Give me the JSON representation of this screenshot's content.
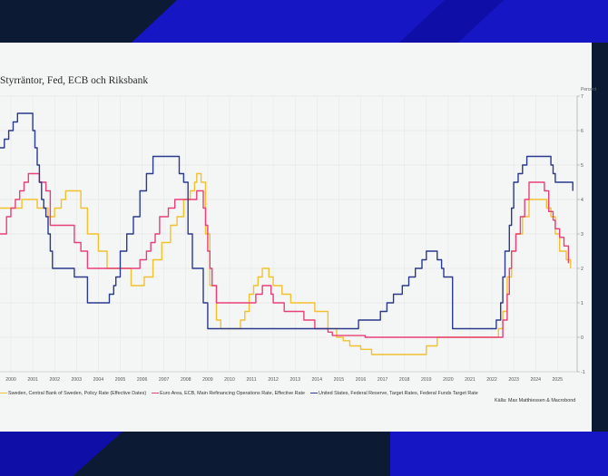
{
  "title": "Styrräntor, Fed, ECB och Riksbank",
  "source": "Källa: Max Matthiessen & Macrobond",
  "colors": {
    "background": "#0c1a34",
    "accent": "#1414c8",
    "card": "#f4f5f5"
  },
  "chart_data": {
    "type": "line",
    "ylabel": "Percent",
    "ylim": [
      -1,
      7
    ],
    "yticks": [
      -1,
      0,
      1,
      2,
      3,
      4,
      5,
      6,
      7
    ],
    "xlim": [
      1999.5,
      2025.9
    ],
    "xticks": [
      2000,
      2001,
      2002,
      2003,
      2004,
      2005,
      2006,
      2007,
      2008,
      2009,
      2010,
      2011,
      2012,
      2013,
      2014,
      2015,
      2016,
      2017,
      2018,
      2019,
      2020,
      2021,
      2022,
      2023,
      2024,
      2025
    ],
    "legend_position": "bottom",
    "grid": true,
    "series": [
      {
        "name": "Sweden, Central Bank of Sweden, Policy Rate (Effective Dates)",
        "color": "#f2c12e",
        "x": [
          1999.5,
          1999.9,
          2000.5,
          2001.2,
          2001.7,
          2002.0,
          2002.3,
          2002.5,
          2002.9,
          2003.2,
          2003.5,
          2004.0,
          2004.4,
          2005.0,
          2005.5,
          2005.9,
          2006.1,
          2006.5,
          2006.9,
          2007.3,
          2007.6,
          2007.9,
          2008.2,
          2008.4,
          2008.5,
          2008.7,
          2008.9,
          2009.1,
          2009.4,
          2009.6,
          2010.0,
          2010.5,
          2010.7,
          2010.9,
          2011.1,
          2011.3,
          2011.5,
          2011.8,
          2012.0,
          2012.4,
          2012.8,
          2013.0,
          2013.9,
          2014.5,
          2014.9,
          2015.2,
          2015.5,
          2016.0,
          2016.5,
          2017.0,
          2018.0,
          2019.0,
          2019.5,
          2020.0,
          2021.0,
          2022.0,
          2022.3,
          2022.5,
          2022.7,
          2022.9,
          2023.1,
          2023.4,
          2023.7,
          2024.0,
          2024.3,
          2024.5,
          2024.7,
          2024.9,
          2025.1,
          2025.4,
          2025.6
        ],
        "values": [
          3.75,
          3.75,
          4.0,
          3.75,
          3.5,
          3.75,
          4.0,
          4.25,
          4.25,
          3.75,
          3.0,
          2.5,
          2.0,
          2.0,
          1.5,
          1.5,
          1.75,
          2.25,
          2.75,
          3.25,
          3.5,
          4.0,
          4.25,
          4.5,
          4.75,
          4.5,
          3.0,
          1.5,
          0.5,
          0.25,
          0.25,
          0.5,
          0.75,
          1.25,
          1.5,
          1.75,
          2.0,
          1.75,
          1.5,
          1.25,
          1.0,
          1.0,
          0.75,
          0.25,
          0.0,
          -0.1,
          -0.25,
          -0.35,
          -0.5,
          -0.5,
          -0.5,
          -0.25,
          0.0,
          0.0,
          0.0,
          0.0,
          0.25,
          0.75,
          1.75,
          2.5,
          3.0,
          3.5,
          4.0,
          4.0,
          4.0,
          3.75,
          3.5,
          3.0,
          2.5,
          2.25,
          2.0
        ]
      },
      {
        "name": "Euro Area, ECB, Main Refinancing Operations Rate, Effective Rate",
        "color": "#e8407a",
        "x": [
          1999.5,
          1999.8,
          2000.0,
          2000.2,
          2000.4,
          2000.6,
          2000.8,
          2001.3,
          2001.6,
          2001.8,
          2002.9,
          2003.2,
          2003.5,
          2005.9,
          2006.2,
          2006.4,
          2006.6,
          2006.8,
          2007.2,
          2007.5,
          2008.5,
          2008.8,
          2008.9,
          2009.0,
          2009.1,
          2009.2,
          2009.4,
          2011.2,
          2011.5,
          2011.9,
          2012.0,
          2012.5,
          2013.4,
          2013.9,
          2014.5,
          2014.7,
          2016.2,
          2019.0,
          2022.5,
          2022.7,
          2022.8,
          2022.9,
          2023.1,
          2023.3,
          2023.5,
          2023.7,
          2024.4,
          2024.6,
          2024.8,
          2024.9,
          2025.1,
          2025.3,
          2025.5
        ],
        "values": [
          3.0,
          3.5,
          3.75,
          4.0,
          4.25,
          4.5,
          4.75,
          4.5,
          4.25,
          3.25,
          2.75,
          2.5,
          2.0,
          2.25,
          2.5,
          2.75,
          3.0,
          3.5,
          3.75,
          4.0,
          4.25,
          3.75,
          3.25,
          2.5,
          2.0,
          1.5,
          1.0,
          1.25,
          1.5,
          1.25,
          1.0,
          0.75,
          0.5,
          0.25,
          0.15,
          0.05,
          0.0,
          0.0,
          0.5,
          1.25,
          2.0,
          2.5,
          3.0,
          3.5,
          4.0,
          4.5,
          4.25,
          3.65,
          3.4,
          3.15,
          2.9,
          2.65,
          2.15
        ]
      },
      {
        "name": "United States, Federal Reserve, Target Rates, Federal Funds Target Rate",
        "color": "#2b3a8c",
        "x": [
          1999.5,
          1999.7,
          1999.9,
          2000.1,
          2000.3,
          2000.4,
          2001.0,
          2001.1,
          2001.2,
          2001.3,
          2001.4,
          2001.5,
          2001.6,
          2001.7,
          2001.8,
          2001.9,
          2002.9,
          2003.5,
          2004.5,
          2004.7,
          2004.8,
          2005.0,
          2005.3,
          2005.6,
          2005.9,
          2006.2,
          2006.5,
          2007.7,
          2007.9,
          2008.1,
          2008.3,
          2008.8,
          2009.0,
          2015.9,
          2016.9,
          2017.2,
          2017.5,
          2017.9,
          2018.2,
          2018.5,
          2018.8,
          2019.0,
          2019.5,
          2019.7,
          2019.8,
          2020.2,
          2022.2,
          2022.4,
          2022.5,
          2022.6,
          2022.8,
          2022.9,
          2023.0,
          2023.2,
          2023.4,
          2023.6,
          2024.7,
          2024.8,
          2024.9,
          2025.0,
          2025.7
        ],
        "values": [
          5.5,
          5.75,
          6.0,
          6.25,
          6.5,
          6.5,
          6.0,
          5.5,
          5.0,
          4.5,
          4.0,
          3.75,
          3.5,
          3.0,
          2.5,
          2.0,
          1.75,
          1.0,
          1.25,
          1.5,
          1.75,
          2.5,
          3.0,
          3.5,
          4.25,
          4.75,
          5.25,
          4.75,
          4.5,
          3.0,
          2.0,
          1.0,
          0.25,
          0.5,
          0.75,
          1.0,
          1.25,
          1.5,
          1.75,
          2.0,
          2.25,
          2.5,
          2.25,
          2.0,
          1.75,
          0.25,
          0.5,
          1.0,
          1.75,
          2.5,
          3.25,
          3.75,
          4.5,
          4.75,
          5.0,
          5.25,
          5.0,
          4.75,
          4.5,
          4.5,
          4.25
        ]
      }
    ]
  }
}
